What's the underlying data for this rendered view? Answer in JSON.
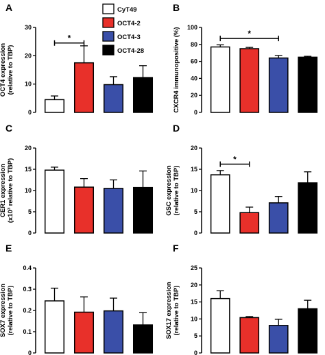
{
  "legend": [
    {
      "name": "CyT49",
      "color": "#ffffff"
    },
    {
      "name": "OCT4-2",
      "color": "#e8302a"
    },
    {
      "name": "OCT4-3",
      "color": "#3a4fa8"
    },
    {
      "name": "OCT4-28",
      "color": "#000000"
    }
  ],
  "chart_data": [
    {
      "panel": "A",
      "type": "bar",
      "categories": [
        "CyT49",
        "OCT4-2",
        "OCT4-3",
        "OCT4-28"
      ],
      "ylabel_lines": [
        "OCT4 expression",
        "(relative to TBP)"
      ],
      "ylim": [
        0,
        30
      ],
      "yticks": [
        0,
        10,
        20,
        30
      ],
      "tick_labels": [
        "0",
        "10",
        "20",
        "30"
      ],
      "values": [
        4.5,
        17.5,
        9.8,
        12.3
      ],
      "errors": [
        1.3,
        6.0,
        2.8,
        4.2
      ],
      "significance": [
        {
          "from": 0,
          "to": 1,
          "y": 24.5,
          "label": "*"
        }
      ]
    },
    {
      "panel": "B",
      "type": "bar",
      "categories": [
        "CyT49",
        "OCT4-2",
        "OCT4-3",
        "OCT4-28"
      ],
      "ylabel_lines": [
        "CXCR4 immunopositive (%)"
      ],
      "ylim": [
        0,
        100
      ],
      "yticks": [
        0,
        20,
        40,
        60,
        80,
        100
      ],
      "tick_labels": [
        "0",
        "20",
        "40",
        "60",
        "80",
        "100"
      ],
      "values": [
        77,
        75,
        64,
        65
      ],
      "errors": [
        2.5,
        1.5,
        3.0,
        1.0
      ],
      "significance": [
        {
          "from": 0,
          "to": 2,
          "y": 87,
          "label": "*"
        }
      ]
    },
    {
      "panel": "C",
      "type": "bar",
      "categories": [
        "CyT49",
        "OCT4-2",
        "OCT4-3",
        "OCT4-28"
      ],
      "ylabel_lines": [
        "CER1 expression",
        "(x10³ relative to TBP)"
      ],
      "ylim": [
        0,
        20
      ],
      "yticks": [
        0,
        5,
        10,
        15,
        20
      ],
      "tick_labels": [
        "0",
        "5",
        "10",
        "15",
        "20"
      ],
      "values": [
        14.8,
        10.8,
        10.5,
        10.7
      ],
      "errors": [
        0.7,
        2.0,
        2.0,
        3.9
      ],
      "significance": []
    },
    {
      "panel": "D",
      "type": "bar",
      "categories": [
        "CyT49",
        "OCT4-2",
        "OCT4-3",
        "OCT4-28"
      ],
      "ylabel_lines": [
        "GSC expression",
        "(relative to TBP)"
      ],
      "ylim": [
        0,
        20
      ],
      "yticks": [
        0,
        5,
        10,
        15,
        20
      ],
      "tick_labels": [
        "0",
        "5",
        "10",
        "15",
        "20"
      ],
      "values": [
        13.7,
        4.8,
        7.1,
        11.8
      ],
      "errors": [
        1.0,
        1.3,
        1.5,
        2.6
      ],
      "significance": [
        {
          "from": 0,
          "to": 1,
          "y": 16.2,
          "label": "*"
        }
      ]
    },
    {
      "panel": "E",
      "type": "bar",
      "categories": [
        "CyT49",
        "OCT4-2",
        "OCT4-3",
        "OCT4-28"
      ],
      "ylabel_lines": [
        "SOX7 expression",
        "(relative to TBP)"
      ],
      "ylim": [
        0,
        0.4
      ],
      "yticks": [
        0,
        0.1,
        0.2,
        0.3,
        0.4
      ],
      "tick_labels": [
        "0",
        "0.1",
        "0.2",
        "0.3",
        "0.4"
      ],
      "values": [
        0.245,
        0.192,
        0.198,
        0.132
      ],
      "errors": [
        0.06,
        0.072,
        0.06,
        0.058
      ],
      "significance": []
    },
    {
      "panel": "F",
      "type": "bar",
      "categories": [
        "CyT49",
        "OCT4-2",
        "OCT4-3",
        "OCT4-28"
      ],
      "ylabel_lines": [
        "SOX17 expression",
        "(relative to TBP)"
      ],
      "ylim": [
        0,
        25
      ],
      "yticks": [
        0,
        5,
        10,
        15,
        20,
        25
      ],
      "tick_labels": [
        "0",
        "5",
        "10",
        "15",
        "20",
        "25"
      ],
      "values": [
        16.0,
        10.4,
        8.1,
        13.0
      ],
      "errors": [
        2.3,
        0.3,
        1.8,
        2.5
      ],
      "significance": []
    }
  ]
}
